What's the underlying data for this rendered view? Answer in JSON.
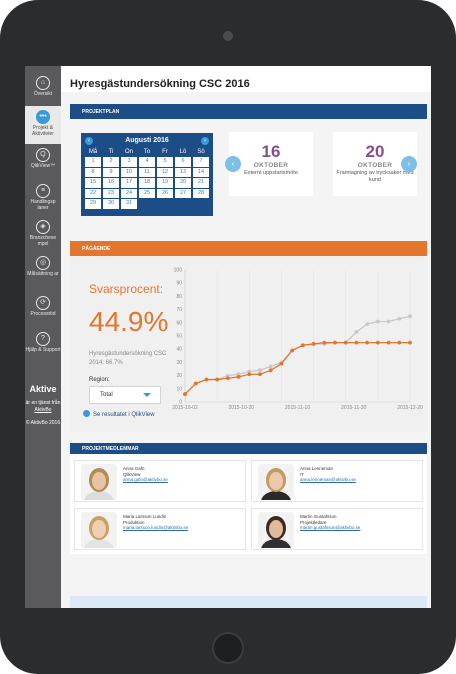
{
  "nav": {
    "items": [
      {
        "label": "Översikt",
        "icon": "home-icon",
        "glyph": "⌂"
      },
      {
        "label": "Projekt & Aktiviteter",
        "icon": "projects-icon",
        "glyph": "•••"
      },
      {
        "label": "QlikView™",
        "icon": "qlikview-icon",
        "glyph": "Q"
      },
      {
        "label": "Handlingsp laner",
        "icon": "list-icon",
        "glyph": "≡"
      },
      {
        "label": "Branschexe mpel",
        "icon": "examples-icon",
        "glyph": "◈"
      },
      {
        "label": "Målsättning ar",
        "icon": "target-icon",
        "glyph": "◎"
      },
      {
        "label": "Processtöd",
        "icon": "process-icon",
        "glyph": "⟳"
      },
      {
        "label": "Hjälp & Support",
        "icon": "help-icon",
        "glyph": "?"
      }
    ],
    "brand_name": "Aktive",
    "brand_text": "är en tjänst från",
    "brand_link": "AktivBo",
    "brand_copy": "© AktivBo 2016"
  },
  "header": {
    "title": "Hyresgästundersökning CSC 2016"
  },
  "plan": {
    "bar_label": "PROJEKTPLAN",
    "calendar": {
      "month": "Augusti 2016",
      "prev_glyph": "‹",
      "next_glyph": "›",
      "day_names": [
        "Må",
        "Ti",
        "On",
        "To",
        "Fr",
        "Lö",
        "Sö"
      ],
      "weeks": [
        [
          "1",
          "2",
          "3",
          "4",
          "5",
          "6",
          "7"
        ],
        [
          "8",
          "9",
          "10",
          "11",
          "12",
          "13",
          "14"
        ],
        [
          "15",
          "16",
          "17",
          "18",
          "19",
          "20",
          "21"
        ],
        [
          "22",
          "23",
          "24",
          "25",
          "26",
          "27",
          "28"
        ],
        [
          "29",
          "30",
          "31",
          "",
          "",
          "",
          ""
        ]
      ]
    },
    "events": [
      {
        "day": "16",
        "month": "OKTOBER",
        "desc": "Externt uppstartsmöte"
      },
      {
        "day": "20",
        "month": "OKTOBER",
        "desc": "Framtagning av trycksaker med kund"
      }
    ],
    "prev_glyph": "‹",
    "next_glyph": "›"
  },
  "ongoing": {
    "bar_label": "PÅGÅENDE",
    "stat_label": "Svarsprocent:",
    "stat_value": "44.9%",
    "compare_text": "Hyresgästundersökning CSC 2014: 66.7%",
    "region_label": "Region:",
    "region_value": "Total",
    "qlik_link": "Se resultatet i QlikView"
  },
  "chart_data": {
    "type": "line",
    "x": [
      "2015-10-02",
      "2015-10-06",
      "2015-10-10",
      "2015-10-14",
      "2015-10-18",
      "2015-10-22",
      "2015-10-26",
      "2015-10-30",
      "2015-11-03",
      "2015-11-07",
      "2015-11-11",
      "2015-11-15",
      "2015-11-19",
      "2015-11-23",
      "2015-11-27",
      "2015-12-01",
      "2015-12-05",
      "2015-12-09",
      "2015-12-13",
      "2015-12-17",
      "2015-12-21",
      "2015-12-25"
    ],
    "series": [
      {
        "name": "",
        "color": "#e3762d",
        "values": [
          6,
          14,
          17,
          17,
          18,
          19,
          21,
          21,
          24,
          29,
          39,
          43,
          44,
          45,
          45,
          45,
          45,
          45,
          45,
          45,
          45,
          45
        ]
      },
      {
        "name": "",
        "color": "#c8c8c8",
        "values": [
          6,
          14,
          17,
          17,
          20,
          21,
          23,
          24,
          27,
          30,
          39,
          43,
          44,
          44,
          45,
          45,
          53,
          59,
          61,
          61,
          63,
          65
        ]
      }
    ],
    "xticks": [
      "2015-10-02",
      "2015-10-20",
      "2015-11-10",
      "2015-11-30",
      "2015-12-20"
    ],
    "yticks": [
      "0",
      "10",
      "20",
      "30",
      "40",
      "50",
      "60",
      "70",
      "80",
      "90",
      "100"
    ],
    "ylim": [
      0,
      100
    ],
    "grid": "vertical"
  },
  "members": {
    "bar_label": "PROJEKTMEDLEMMAR",
    "people": [
      {
        "name": "Anna Gafö",
        "role": "QlikView",
        "email": "anna.gafo@aktivbo.se",
        "hair": "#b58a55",
        "skin": "#e8c3a4",
        "shirt": "#dcdcdc"
      },
      {
        "name": "Anna Lenneman",
        "role": "IT",
        "email": "anna.lenneman@aktivbo.se",
        "hair": "#c29a63",
        "skin": "#ecc9aa",
        "shirt": "#2a2a2a"
      },
      {
        "name": "Maria Larsson Lundin",
        "role": "Produktion",
        "email": "maria.larsson.lundin@aktivbo.se",
        "hair": "#c9a06a",
        "skin": "#efd0b4",
        "shirt": "#e3e3e3"
      },
      {
        "name": "Martin Gustafsson",
        "role": "Projektledare",
        "email": "martin.gustafsson@aktivbo.se",
        "hair": "#3b2a20",
        "skin": "#e2b99a",
        "shirt": "#2e2e33"
      }
    ]
  }
}
